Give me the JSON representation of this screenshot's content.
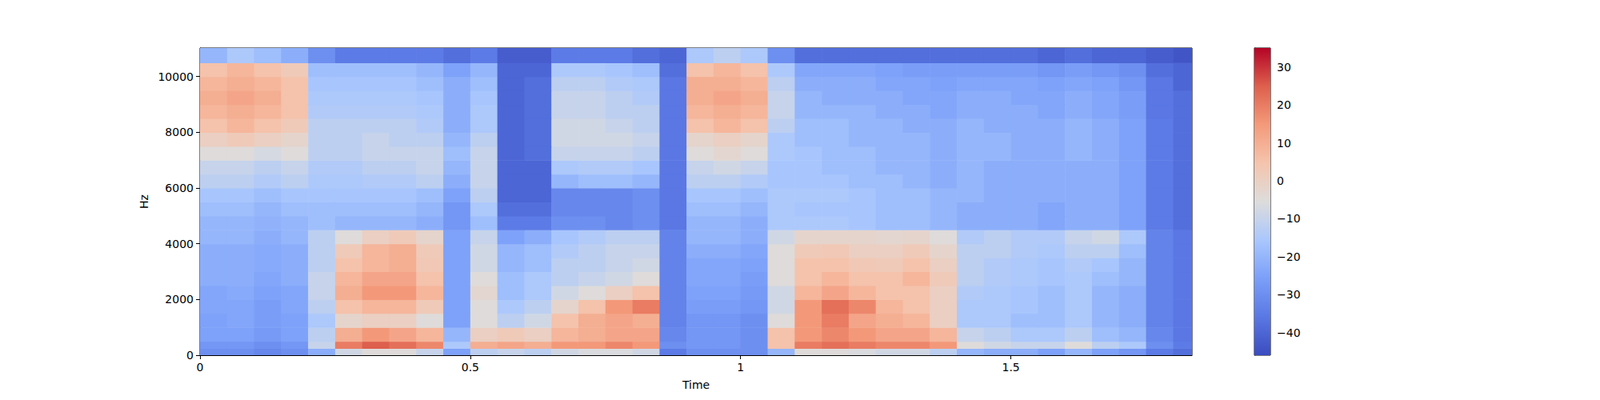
{
  "chart_data": {
    "type": "heatmap",
    "xlabel": "Time",
    "ylabel": "Hz",
    "xlim": [
      0,
      1.835
    ],
    "xticks": [
      0,
      0.5,
      1,
      1.5
    ],
    "ylim": [
      0,
      11025
    ],
    "yticks": [
      0,
      2000,
      4000,
      6000,
      8000,
      10000
    ],
    "time_bins": [
      0,
      0.05,
      0.1,
      0.15,
      0.2,
      0.25,
      0.3,
      0.35,
      0.4,
      0.45,
      0.5,
      0.55,
      0.6,
      0.65,
      0.7,
      0.75,
      0.8,
      0.85,
      0.9,
      0.95,
      1.0,
      1.05,
      1.1,
      1.15,
      1.2,
      1.25,
      1.3,
      1.35,
      1.4,
      1.45,
      1.5,
      1.55,
      1.6,
      1.65,
      1.7,
      1.75,
      1.8,
      1.835
    ],
    "freq_bins": [
      0,
      250,
      500,
      1000,
      1500,
      2000,
      2500,
      3000,
      3500,
      4000,
      4500,
      5000,
      5500,
      6000,
      6500,
      7000,
      7500,
      8000,
      8500,
      9000,
      9500,
      10000,
      10500,
      11025
    ],
    "cells": [
      [
        -30,
        -30,
        -32,
        -30,
        -22,
        -8,
        -5,
        -5,
        -10,
        -25,
        -12,
        -10,
        -12,
        -8,
        -6,
        -6,
        -8,
        -35,
        -30,
        -30,
        -30,
        -20,
        -5,
        -5,
        -6,
        -8,
        -8,
        -12,
        -20,
        -22,
        -22,
        -25,
        -20,
        -25,
        -28,
        -35,
        -38
      ],
      [
        -28,
        -28,
        -30,
        -28,
        -10,
        20,
        25,
        22,
        18,
        -15,
        10,
        12,
        10,
        15,
        15,
        18,
        15,
        -30,
        -28,
        -28,
        -30,
        5,
        20,
        22,
        20,
        18,
        18,
        15,
        -5,
        -8,
        -10,
        -10,
        -5,
        -12,
        -15,
        -30,
        -35
      ],
      [
        -25,
        -25,
        -27,
        -25,
        -12,
        10,
        15,
        12,
        8,
        -20,
        0,
        2,
        0,
        8,
        10,
        12,
        12,
        -32,
        -28,
        -28,
        -30,
        5,
        15,
        18,
        15,
        12,
        12,
        8,
        -10,
        -12,
        -15,
        -15,
        -12,
        -18,
        -20,
        -32,
        -36
      ],
      [
        -25,
        -24,
        -26,
        -25,
        -15,
        -2,
        0,
        0,
        -5,
        -25,
        -5,
        -12,
        -8,
        5,
        10,
        12,
        10,
        -33,
        -28,
        -28,
        -30,
        -5,
        15,
        20,
        12,
        10,
        8,
        0,
        -15,
        -15,
        -18,
        -18,
        -15,
        -20,
        -22,
        -33,
        -36
      ],
      [
        -24,
        -24,
        -26,
        -24,
        -12,
        5,
        8,
        8,
        2,
        -25,
        -5,
        -15,
        -12,
        -2,
        5,
        15,
        20,
        -33,
        -26,
        -26,
        -28,
        -8,
        15,
        22,
        18,
        8,
        5,
        0,
        -15,
        -15,
        -16,
        -18,
        -15,
        -20,
        -22,
        -33,
        -36
      ],
      [
        -24,
        -23,
        -25,
        -24,
        -10,
        10,
        15,
        15,
        8,
        -25,
        -3,
        -18,
        -15,
        -8,
        -5,
        0,
        5,
        -33,
        -25,
        -25,
        -27,
        -8,
        8,
        12,
        8,
        5,
        5,
        0,
        -14,
        -15,
        -16,
        -18,
        -15,
        -20,
        -22,
        -33,
        -36
      ],
      [
        -22,
        -22,
        -24,
        -22,
        -10,
        8,
        12,
        12,
        5,
        -25,
        -5,
        -18,
        -15,
        -12,
        -10,
        -8,
        -5,
        -33,
        -24,
        -24,
        -26,
        -5,
        5,
        8,
        5,
        5,
        8,
        2,
        -12,
        -14,
        -15,
        -16,
        -15,
        -18,
        -20,
        -33,
        -36
      ],
      [
        -22,
        -22,
        -23,
        -22,
        -12,
        5,
        8,
        10,
        3,
        -25,
        -8,
        -20,
        -18,
        -12,
        -12,
        -10,
        -8,
        -33,
        -24,
        -24,
        -25,
        -5,
        5,
        5,
        3,
        2,
        5,
        0,
        -12,
        -14,
        -15,
        -16,
        -14,
        -16,
        -20,
        -33,
        -36
      ],
      [
        -22,
        -22,
        -23,
        -22,
        -12,
        2,
        8,
        10,
        2,
        -25,
        -8,
        -20,
        -18,
        -14,
        -12,
        -10,
        -10,
        -33,
        -22,
        -22,
        -24,
        -5,
        2,
        3,
        0,
        0,
        2,
        -2,
        -12,
        -12,
        -14,
        -15,
        -12,
        -12,
        -18,
        -33,
        -36
      ],
      [
        -20,
        -20,
        -22,
        -20,
        -12,
        -5,
        0,
        2,
        -2,
        -25,
        -10,
        -25,
        -22,
        -16,
        -14,
        -12,
        -12,
        -33,
        -20,
        -20,
        -22,
        -8,
        -2,
        -2,
        -2,
        -3,
        -2,
        -5,
        -14,
        -12,
        -14,
        -14,
        -10,
        -8,
        -15,
        -33,
        -36
      ],
      [
        -20,
        -20,
        -21,
        -20,
        -18,
        -20,
        -20,
        -20,
        -22,
        -28,
        -18,
        -35,
        -35,
        -30,
        -30,
        -32,
        -30,
        -36,
        -20,
        -20,
        -22,
        -15,
        -15,
        -15,
        -16,
        -18,
        -18,
        -20,
        -22,
        -22,
        -22,
        -24,
        -22,
        -22,
        -25,
        -35,
        -38
      ],
      [
        -18,
        -18,
        -20,
        -18,
        -18,
        -18,
        -18,
        -18,
        -20,
        -28,
        -15,
        -38,
        -38,
        -32,
        -32,
        -32,
        -30,
        -36,
        -18,
        -18,
        -20,
        -15,
        -16,
        -16,
        -16,
        -18,
        -18,
        -20,
        -22,
        -22,
        -22,
        -24,
        -22,
        -22,
        -25,
        -35,
        -38
      ],
      [
        -16,
        -16,
        -18,
        -16,
        -16,
        -16,
        -16,
        -16,
        -18,
        -25,
        -12,
        -40,
        -40,
        -32,
        -32,
        -32,
        -30,
        -36,
        -16,
        -16,
        -18,
        -15,
        -15,
        -15,
        -16,
        -18,
        -18,
        -20,
        -20,
        -22,
        -22,
        -22,
        -22,
        -22,
        -25,
        -35,
        -38
      ],
      [
        -12,
        -12,
        -14,
        -12,
        -15,
        -15,
        -14,
        -14,
        -12,
        -22,
        -10,
        -40,
        -40,
        -20,
        -18,
        -18,
        -20,
        -36,
        -12,
        -12,
        -14,
        -16,
        -16,
        -16,
        -18,
        -18,
        -20,
        -22,
        -20,
        -22,
        -22,
        -22,
        -22,
        -22,
        -25,
        -35,
        -38
      ],
      [
        -10,
        -10,
        -12,
        -10,
        -14,
        -14,
        -12,
        -12,
        -10,
        -20,
        -10,
        -40,
        -40,
        -15,
        -14,
        -14,
        -16,
        -36,
        -10,
        -8,
        -10,
        -16,
        -16,
        -18,
        -18,
        -20,
        -20,
        -22,
        -20,
        -22,
        -22,
        -22,
        -22,
        -22,
        -25,
        -35,
        -38
      ],
      [
        -5,
        -5,
        -7,
        -5,
        -12,
        -12,
        -10,
        -10,
        -10,
        -18,
        -10,
        -40,
        -38,
        -10,
        -10,
        -10,
        -12,
        -36,
        -5,
        -3,
        -5,
        -15,
        -16,
        -18,
        -18,
        -20,
        -20,
        -22,
        -20,
        -20,
        -22,
        -22,
        -20,
        -22,
        -25,
        -35,
        -38
      ],
      [
        0,
        2,
        0,
        -2,
        -12,
        -12,
        -10,
        -12,
        -12,
        -20,
        -12,
        -40,
        -38,
        -8,
        -8,
        -8,
        -10,
        -36,
        -2,
        0,
        -2,
        -15,
        -18,
        -18,
        -20,
        -20,
        -20,
        -22,
        -20,
        -20,
        -22,
        -22,
        -20,
        -22,
        -25,
        -35,
        -38
      ],
      [
        5,
        8,
        5,
        2,
        -12,
        -12,
        -12,
        -12,
        -14,
        -22,
        -15,
        -40,
        -38,
        -8,
        -8,
        -10,
        -12,
        -36,
        5,
        8,
        5,
        -12,
        -18,
        -18,
        -20,
        -20,
        -22,
        -22,
        -20,
        -22,
        -22,
        -22,
        -20,
        -22,
        -25,
        -35,
        -38
      ],
      [
        8,
        10,
        8,
        5,
        -14,
        -14,
        -14,
        -14,
        -15,
        -22,
        -15,
        -40,
        -38,
        -10,
        -10,
        -12,
        -12,
        -36,
        8,
        10,
        8,
        -10,
        -20,
        -20,
        -20,
        -22,
        -22,
        -24,
        -22,
        -22,
        -22,
        -24,
        -22,
        -24,
        -26,
        -36,
        -38
      ],
      [
        10,
        12,
        10,
        5,
        -15,
        -15,
        -15,
        -15,
        -16,
        -22,
        -16,
        -40,
        -38,
        -10,
        -10,
        -12,
        -14,
        -36,
        10,
        12,
        10,
        -10,
        -20,
        -22,
        -22,
        -22,
        -24,
        -24,
        -22,
        -22,
        -24,
        -24,
        -22,
        -24,
        -26,
        -36,
        -38
      ],
      [
        8,
        10,
        8,
        5,
        -16,
        -16,
        -16,
        -16,
        -18,
        -22,
        -18,
        -40,
        -38,
        -12,
        -12,
        -14,
        -15,
        -36,
        10,
        10,
        8,
        -12,
        -22,
        -22,
        -22,
        -24,
        -24,
        -25,
        -24,
        -24,
        -24,
        -25,
        -24,
        -25,
        -28,
        -36,
        -40
      ],
      [
        5,
        8,
        5,
        2,
        -18,
        -18,
        -18,
        -18,
        -20,
        -25,
        -20,
        -40,
        -40,
        -15,
        -15,
        -16,
        -18,
        -38,
        5,
        8,
        5,
        -15,
        -24,
        -24,
        -24,
        -25,
        -26,
        -26,
        -26,
        -26,
        -26,
        -28,
        -26,
        -28,
        -30,
        -38,
        -40
      ],
      [
        -20,
        -15,
        -18,
        -22,
        -30,
        -35,
        -35,
        -35,
        -35,
        -38,
        -35,
        -42,
        -42,
        -35,
        -35,
        -35,
        -38,
        -40,
        -15,
        -12,
        -15,
        -30,
        -38,
        -38,
        -38,
        -38,
        -38,
        -38,
        -38,
        -38,
        -38,
        -40,
        -38,
        -40,
        -40,
        -42,
        -44
      ]
    ],
    "colorbar": {
      "range": [
        -46,
        35
      ],
      "ticks": [
        {
          "value": -40,
          "label": "−40"
        },
        {
          "value": -30,
          "label": "−30"
        },
        {
          "value": -20,
          "label": "−20"
        },
        {
          "value": -10,
          "label": "−10"
        },
        0,
        10,
        20,
        30
      ]
    }
  }
}
